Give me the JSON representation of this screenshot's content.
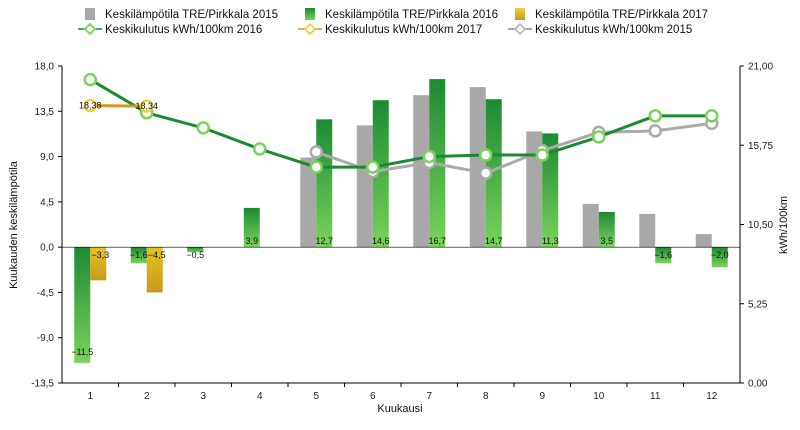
{
  "chart_data": {
    "type": "bar",
    "categories": [
      "1",
      "2",
      "3",
      "4",
      "5",
      "6",
      "7",
      "8",
      "9",
      "10",
      "11",
      "12"
    ],
    "xlabel": "Kuukausi",
    "ylabel_left": "Kuukauden keskilämpötila",
    "ylabel_right": "kWh/100km",
    "ylim_left": [
      -13.5,
      18.0
    ],
    "yticks_left": [
      "18,0",
      "13,5",
      "9,0",
      "4,5",
      "0,0",
      "-4,5",
      "-9,0",
      "-13,5"
    ],
    "ylim_right": [
      0.0,
      21.0
    ],
    "yticks_right": [
      "21,00",
      "15,75",
      "10,50",
      "5,25",
      "0,00"
    ],
    "legend_position": "top",
    "colors": {
      "bar_2015": "#a8a8a8",
      "bar_2016_top": "#1c8a35",
      "bar_2016_bottom": "#7ad35a",
      "bar_2017_top": "#e6c21f",
      "bar_2017_bottom": "#c89a1c",
      "line_2016": "#1c8a35",
      "line_2016_marker": "#7ad35a",
      "line_2017": "#d8961c",
      "line_2017_marker": "#f0d040",
      "line_2015": "#aaaaaa"
    },
    "bar_series": [
      {
        "name": "Keskilämpötila TRE/Pirkkala 2015",
        "key": "bar_2015",
        "values": [
          null,
          null,
          null,
          null,
          8.9,
          12.1,
          15.1,
          15.9,
          11.5,
          4.3,
          3.3,
          1.3
        ],
        "labels": [
          "",
          "",
          "",
          "",
          "",
          "",
          "",
          "",
          "",
          "",
          "",
          ""
        ]
      },
      {
        "name": "Keskilämpötila TRE/Pirkkala 2016",
        "key": "bar_2016",
        "values": [
          -11.5,
          -1.6,
          -0.5,
          3.9,
          12.7,
          14.6,
          16.7,
          14.7,
          11.3,
          3.5,
          -1.6,
          -2.0
        ],
        "labels": [
          "−11,5",
          "−1,6",
          "−0,5",
          "3,9",
          "12,7",
          "14,6",
          "16,7",
          "14,7",
          "11,3",
          "3,5",
          "−1,6",
          "−2,0"
        ]
      },
      {
        "name": "Keskilämpötila TRE/Pirkkala 2017",
        "key": "bar_2017",
        "values": [
          -3.3,
          -4.5,
          null,
          null,
          null,
          null,
          null,
          null,
          null,
          null,
          null,
          null
        ],
        "labels": [
          "−3,3",
          "−4,5",
          "",
          "",
          "",
          "",
          "",
          "",
          "",
          "",
          "",
          ""
        ]
      }
    ],
    "line_series": [
      {
        "name": "Keskikulutus kWh/100km 2016",
        "key": "line_2016",
        "values": [
          20.1,
          17.9,
          16.9,
          15.5,
          14.3,
          14.3,
          15.0,
          15.1,
          15.1,
          16.3,
          17.7,
          17.7
        ]
      },
      {
        "name": "Keskikulutus kWh/100km 2017",
        "key": "line_2017",
        "values": [
          18.38,
          18.34,
          null,
          null,
          null,
          null,
          null,
          null,
          null,
          null,
          null,
          null
        ],
        "labels": [
          "18,38",
          "18,34",
          "",
          "",
          "",
          "",
          "",
          "",
          "",
          "",
          "",
          ""
        ]
      },
      {
        "name": "Keskikulutus kWh/100km 2015",
        "key": "line_2015",
        "values": [
          null,
          null,
          null,
          null,
          15.3,
          14.0,
          14.6,
          13.9,
          15.4,
          16.6,
          16.7,
          17.2
        ]
      }
    ]
  }
}
